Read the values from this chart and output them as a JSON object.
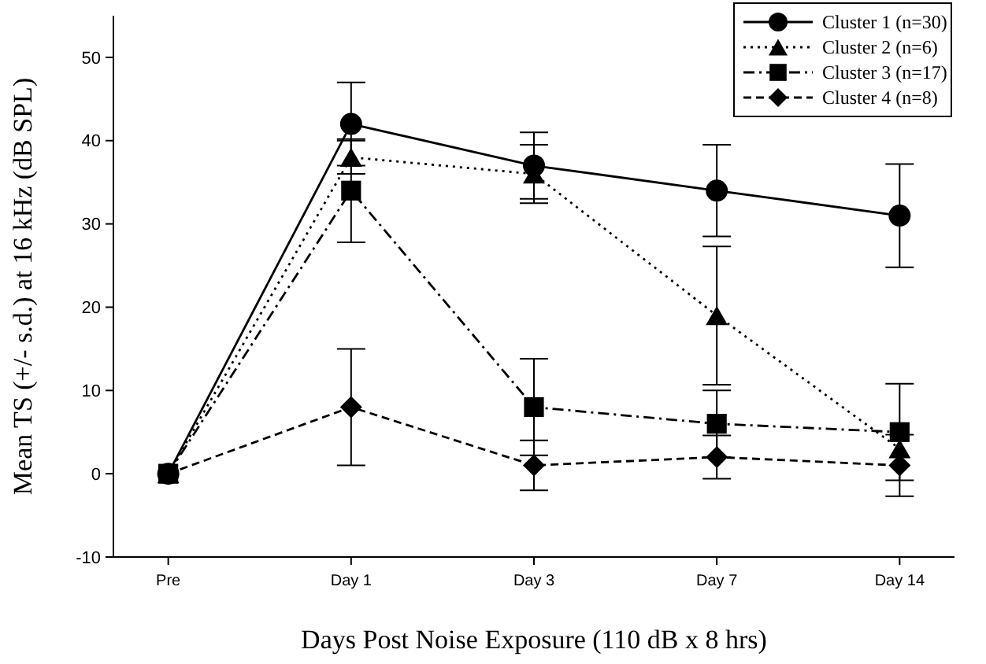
{
  "chart_data": {
    "type": "line",
    "xlabel": "Days Post Noise Exposure (110 dB x 8 hrs)",
    "ylabel": "Mean TS (+/- s.d.) at 16 kHz (dB SPL)",
    "categories": [
      "Pre",
      "Day 1",
      "Day 3",
      "Day 7",
      "Day 14"
    ],
    "ylim": [
      -10,
      55
    ],
    "yticks": [
      -10,
      0,
      10,
      20,
      30,
      40,
      50
    ],
    "grid": false,
    "legend": "top right",
    "series": [
      {
        "name": "Cluster 1 (n=30)",
        "color": "#000000",
        "marker": "circle",
        "line_style": "solid",
        "values": [
          0,
          42,
          37,
          34,
          31
        ],
        "errors": [
          null,
          5,
          4,
          5.5,
          6.2
        ]
      },
      {
        "name": "Cluster 2 (n=6)",
        "color": "#000000",
        "marker": "triangle",
        "line_style": "dotted",
        "values": [
          0,
          38,
          36,
          19,
          3
        ],
        "errors": [
          null,
          2,
          3.5,
          8.3,
          null
        ]
      },
      {
        "name": "Cluster 3 (n=17)",
        "color": "#000000",
        "marker": "square",
        "line_style": "dashdot",
        "values": [
          0,
          34,
          8,
          6,
          5
        ],
        "errors": [
          null,
          6.2,
          5.8,
          4,
          5.8
        ]
      },
      {
        "name": "Cluster 4 (n=8)",
        "color": "#000000",
        "marker": "diamond",
        "line_style": "dashed",
        "values": [
          0,
          8,
          1,
          2,
          1
        ],
        "errors": [
          null,
          7,
          3,
          2.6,
          3.7
        ]
      }
    ]
  }
}
